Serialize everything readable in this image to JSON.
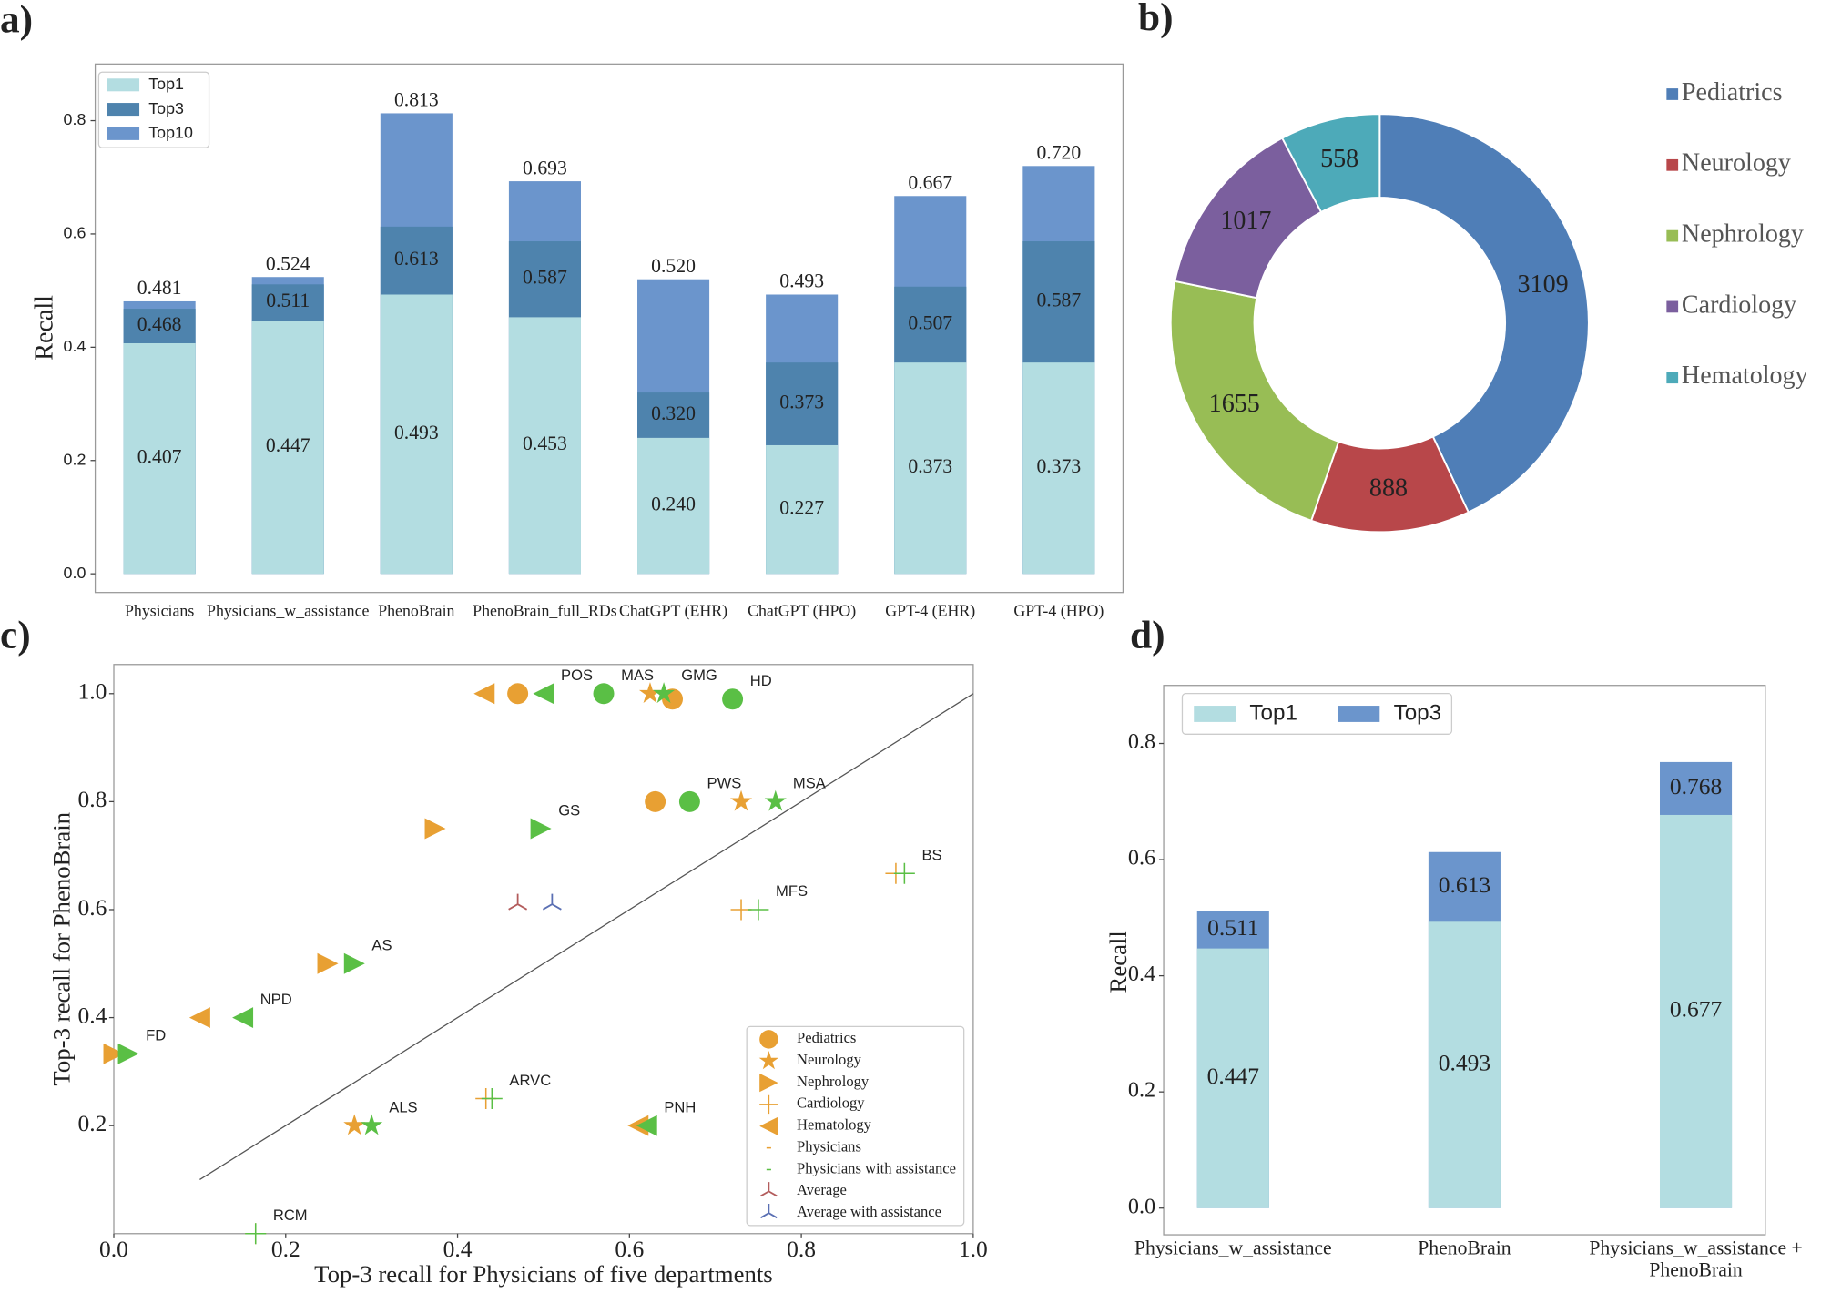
{
  "chart_data": [
    {
      "type": "bar",
      "panel": "a)",
      "ylabel": "Recall",
      "categories": [
        "Physicians",
        "Physicians_w_assistance",
        "PhenoBrain",
        "PhenoBrain_full_RDs",
        "ChatGPT (EHR)",
        "ChatGPT (HPO)",
        "GPT-4 (EHR)",
        "GPT-4 (HPO)"
      ],
      "series": [
        {
          "name": "Top1",
          "color": "#b3dde1",
          "values": [
            0.407,
            0.447,
            0.493,
            0.453,
            0.24,
            0.227,
            0.373,
            0.373
          ],
          "value_labels": [
            "0.407",
            "0.447",
            "0.493",
            "0.453",
            "0.240",
            "0.227",
            "0.373",
            "0.373"
          ]
        },
        {
          "name": "Top3",
          "color": "#4e83ad",
          "values": [
            0.468,
            0.511,
            0.613,
            0.587,
            0.32,
            0.373,
            0.507,
            0.587
          ],
          "value_labels": [
            "0.468",
            "0.511",
            "0.613",
            "0.587",
            "0.320",
            "0.373",
            "0.507",
            "0.587"
          ]
        },
        {
          "name": "Top10",
          "color": "#6b95cc",
          "values": [
            0.481,
            0.524,
            0.813,
            0.693,
            0.52,
            0.493,
            0.667,
            0.72
          ],
          "value_labels": [
            "0.481",
            "0.524",
            "0.813",
            "0.693",
            "0.520",
            "0.493",
            "0.667",
            "0.720"
          ]
        }
      ],
      "ylim": [
        -0.033,
        0.9
      ],
      "yticks": [
        {
          "value": 0,
          "label": "0.0"
        },
        0.2,
        0.4,
        0.6,
        0.8
      ],
      "legend": "upper left"
    },
    {
      "type": "pie",
      "panel": "b)",
      "donut": true,
      "categories": [
        "Pediatrics",
        "Neurology",
        "Nephrology",
        "Cardiology",
        "Hematology"
      ],
      "values": [
        3109,
        888,
        1655,
        1017,
        558
      ],
      "colors": [
        "#4f7eb7",
        "#b8474a",
        "#98bd55",
        "#7b5f9e",
        "#4daab9"
      ],
      "legend": "right"
    },
    {
      "type": "scatter",
      "panel": "c)",
      "xlabel": "Top-3 recall for Physicians of five departments",
      "ylabel": "Top-3 recall for PhenoBrain",
      "departments": [
        "Pediatrics",
        "Neurology",
        "Nephrology",
        "Cardiology",
        "Hematology"
      ],
      "department_markers": [
        "circle",
        "star",
        "triangle-right",
        "plus",
        "triangle-left"
      ],
      "point_labels": [
        "POS",
        "GMG",
        "MAS",
        "HD",
        "PWS",
        "MSA",
        "GS",
        "BS",
        "MFS",
        "AS",
        "NPD",
        "FD",
        "ARVC",
        "ALS",
        "PNH",
        "RCM"
      ],
      "point_departments": [
        4,
        1,
        0,
        0,
        0,
        1,
        2,
        3,
        3,
        2,
        4,
        2,
        3,
        1,
        4,
        3
      ],
      "series": [
        {
          "name": "Physicians",
          "color": "#e8a033",
          "x": [
            0.431,
            0.624,
            0.47,
            0.65,
            0.63,
            0.73,
            0.374,
            0.91,
            0.73,
            0.249,
            0.1,
            0.0,
            0.433,
            0.28,
            0.61,
            0.165
          ],
          "values": [
            1.0,
            1.0,
            1.0,
            0.99,
            0.8,
            0.8,
            0.75,
            0.667,
            0.6,
            0.5,
            0.4,
            0.333,
            0.25,
            0.2,
            0.2,
            0.0
          ]
        },
        {
          "name": "Physicians with assistance",
          "color": "#5abf45",
          "x": [
            0.5,
            0.64,
            0.57,
            0.72,
            0.67,
            0.77,
            0.497,
            0.92,
            0.75,
            0.28,
            0.15,
            0.017,
            0.44,
            0.3,
            0.62,
            0.165
          ],
          "values": [
            1.0,
            1.0,
            1.0,
            0.99,
            0.8,
            0.8,
            0.75,
            0.667,
            0.6,
            0.5,
            0.4,
            0.333,
            0.25,
            0.2,
            0.2,
            0.0
          ]
        }
      ],
      "averages": [
        {
          "name": "Average",
          "color": "#b35c5c",
          "x": [
            0.47
          ],
          "values": [
            0.61
          ]
        },
        {
          "name": "Average with assistance",
          "color": "#5a6fb3",
          "x": [
            0.51
          ],
          "values": [
            0.61
          ]
        }
      ],
      "reference_line": {
        "x": [
          0.1,
          1.0
        ],
        "y": [
          0.1,
          1.0
        ]
      },
      "xlim": [
        0,
        1
      ],
      "ylim": [
        0,
        1.054
      ],
      "xticks": [
        {
          "value": 0,
          "label": "0.0"
        },
        0.2,
        0.4,
        0.6,
        0.8,
        {
          "value": 1,
          "label": "1.0"
        }
      ],
      "yticks": [
        0.2,
        0.4,
        0.6,
        0.8,
        {
          "value": 1,
          "label": "1.0"
        }
      ],
      "legend": "lower right"
    },
    {
      "type": "bar",
      "panel": "d)",
      "ylabel": "Recall",
      "categories": [
        "Physicians_w_assistance",
        "PhenoBrain",
        "Physicians_w_assistance +\nPhenoBrain"
      ],
      "series": [
        {
          "name": "Top1",
          "color": "#b3dde1",
          "values": [
            0.447,
            0.493,
            0.677
          ],
          "value_labels": [
            "0.447",
            "0.493",
            "0.677"
          ]
        },
        {
          "name": "Top3",
          "color": "#6b95cc",
          "values": [
            0.511,
            0.613,
            0.768
          ],
          "value_labels": [
            "0.511",
            "0.613",
            "0.768"
          ]
        }
      ],
      "ylim": [
        -0.046,
        0.9
      ],
      "yticks": [
        {
          "value": 0,
          "label": "0.0"
        },
        0.2,
        0.4,
        0.6,
        0.8
      ],
      "legend": "upper left"
    }
  ]
}
